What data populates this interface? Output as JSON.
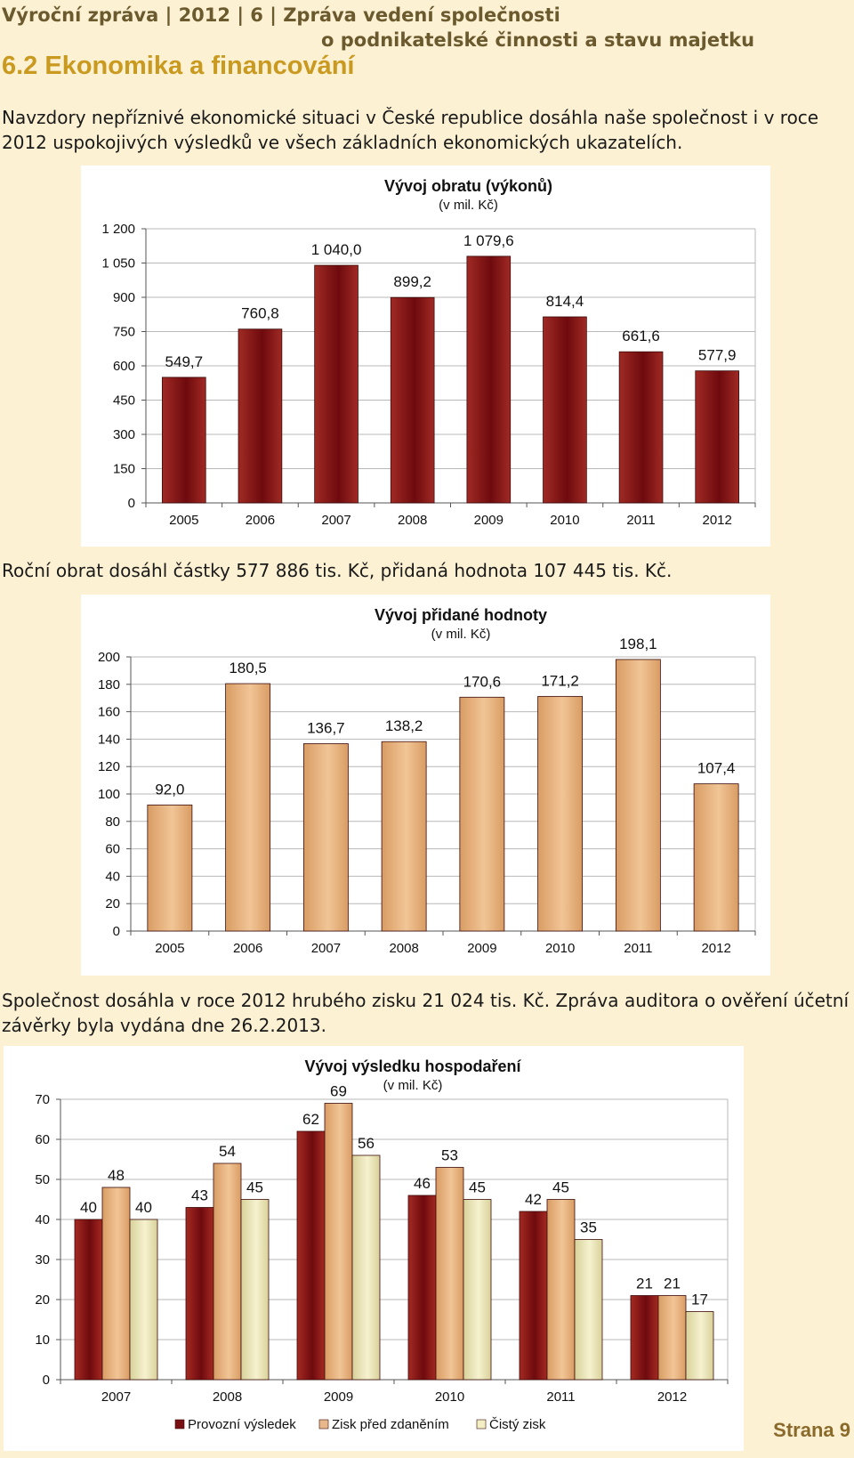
{
  "header": {
    "line1": "Výroční zpráva | 2012 | 6 | Zpráva vedení společnosti",
    "line2": "o podnikatelské činnosti a stavu majetku"
  },
  "section_title": "6.2 Ekonomika a financování",
  "paragraphs": {
    "p1": "Navzdory nepříznivé ekonomické situaci v České republice dosáhla naše společnost i v roce 2012 uspokojivých výsledků ve všech základních ekonomických ukazatelích.",
    "p2": "Roční obrat dosáhl částky 577 886 tis. Kč, přidaná hodnota 107 445 tis. Kč.",
    "p3": "Společnost dosáhla v roce 2012 hrubého zisku 21 024 tis. Kč. Zpráva auditora o ověření účetní závěrky byla vydána dne 26.2.2013."
  },
  "page_number": "Strana 9",
  "chart_data": [
    {
      "type": "bar",
      "title": "Vývoj obratu (výkonů)",
      "subtitle": "(v mil. Kč)",
      "categories": [
        "2005",
        "2006",
        "2007",
        "2008",
        "2009",
        "2010",
        "2011",
        "2012"
      ],
      "values": [
        549.7,
        760.8,
        1040.0,
        899.2,
        1079.6,
        814.4,
        661.6,
        577.9
      ],
      "value_labels": [
        "549,7",
        "760,8",
        "1 040,0",
        "899,2",
        "1 079,6",
        "814,4",
        "661,6",
        "577,9"
      ],
      "ylim": [
        0,
        1200
      ],
      "yticks": [
        0,
        150,
        300,
        450,
        600,
        750,
        900,
        1050,
        1200
      ],
      "ytick_labels": [
        "0",
        "150",
        "300",
        "450",
        "600",
        "750",
        "900",
        "1 050",
        "1 200"
      ],
      "grid": true,
      "color": "#7a0f12"
    },
    {
      "type": "bar",
      "title": "Vývoj přidané hodnoty",
      "subtitle": "(v mil. Kč)",
      "categories": [
        "2005",
        "2006",
        "2007",
        "2008",
        "2009",
        "2010",
        "2011",
        "2012"
      ],
      "values": [
        92.0,
        180.5,
        136.7,
        138.2,
        170.6,
        171.2,
        198.1,
        107.4
      ],
      "value_labels": [
        "92,0",
        "180,5",
        "136,7",
        "138,2",
        "170,6",
        "171,2",
        "198,1",
        "107,4"
      ],
      "ylim": [
        0,
        200
      ],
      "yticks": [
        0,
        20,
        40,
        60,
        80,
        100,
        120,
        140,
        160,
        180,
        200
      ],
      "ytick_labels": [
        "0",
        "20",
        "40",
        "60",
        "80",
        "100",
        "120",
        "140",
        "160",
        "180",
        "200"
      ],
      "grid": true,
      "color": "#e8b88a"
    },
    {
      "type": "bar",
      "title": "Vývoj výsledku hospodaření",
      "subtitle": "(v mil. Kč)",
      "categories": [
        "2007",
        "2008",
        "2009",
        "2010",
        "2011",
        "2012"
      ],
      "series": [
        {
          "name": "Provozní výsledek",
          "values": [
            40,
            43,
            62,
            46,
            42,
            21
          ],
          "color": "#7a0f12"
        },
        {
          "name": "Zisk před zdaněním",
          "values": [
            48,
            54,
            69,
            53,
            45,
            21
          ],
          "color": "#e8b88a"
        },
        {
          "name": "Čistý zisk",
          "values": [
            40,
            45,
            56,
            45,
            35,
            17
          ],
          "color": "#f3efc4"
        }
      ],
      "ylim": [
        0,
        70
      ],
      "yticks": [
        0,
        10,
        20,
        30,
        40,
        50,
        60,
        70
      ],
      "ytick_labels": [
        "0",
        "10",
        "20",
        "30",
        "40",
        "50",
        "60",
        "70"
      ],
      "grid": true,
      "legend": "bottom"
    }
  ]
}
